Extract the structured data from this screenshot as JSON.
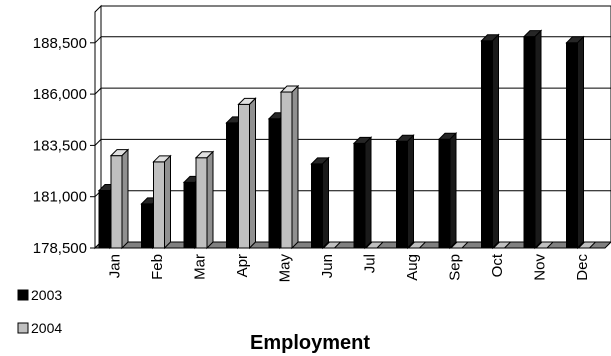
{
  "chart_data": {
    "type": "bar",
    "title": "Employment",
    "xlabel": "",
    "ylabel": "",
    "categories": [
      "Jan",
      "Feb",
      "Mar",
      "Apr",
      "May",
      "Jun",
      "Jul",
      "Aug",
      "Sep",
      "Oct",
      "Nov",
      "Dec"
    ],
    "series": [
      {
        "name": "2003",
        "color": "#000000",
        "values": [
          181300,
          180650,
          181700,
          184600,
          184800,
          182600,
          183600,
          183700,
          183800,
          188600,
          188800,
          188500
        ]
      },
      {
        "name": "2004",
        "color": "#c0c0c0",
        "values": [
          183000,
          182700,
          182900,
          185500,
          186100,
          null,
          null,
          null,
          null,
          null,
          null,
          null
        ]
      }
    ],
    "yticks": [
      178500,
      181000,
      183500,
      186000,
      188500
    ],
    "ytick_labels": [
      "178,500",
      "181,000",
      "183,500",
      "186,000",
      "188,500"
    ],
    "ylim": [
      178500,
      190000
    ],
    "grid": true,
    "legend_position": "bottom-left",
    "style": "3d-column"
  }
}
